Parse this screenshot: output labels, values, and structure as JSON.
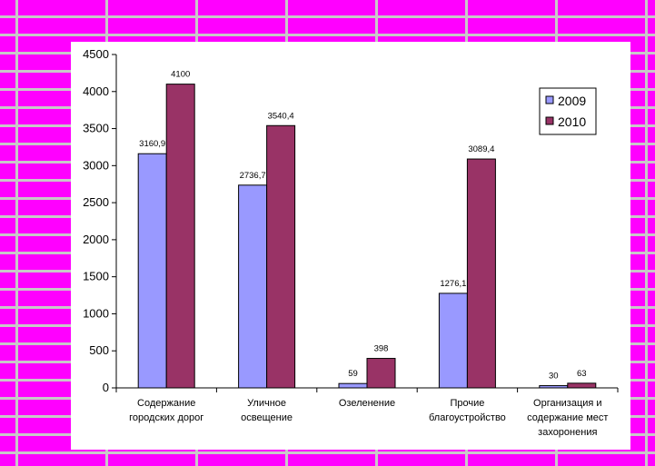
{
  "chart_data": {
    "type": "bar",
    "categories": [
      [
        "Содержание",
        "городских дорог"
      ],
      [
        "Уличное",
        "освещение"
      ],
      [
        "Озеленение"
      ],
      [
        "Прочие",
        "благоустройство"
      ],
      [
        "Организация и",
        "содержание мест",
        "захоронения"
      ]
    ],
    "series": [
      {
        "name": "2009",
        "values": [
          3160.9,
          2736.7,
          59,
          1276.1,
          30
        ],
        "labels": [
          "3160,9",
          "2736,7",
          "59",
          "1276,1",
          "30"
        ],
        "color": "#9999ff"
      },
      {
        "name": "2010",
        "values": [
          4100,
          3540.4,
          398,
          3089.4,
          63
        ],
        "labels": [
          "4100",
          "3540,4",
          "398",
          "3089,4",
          "63"
        ],
        "color": "#993366"
      }
    ],
    "ylim": [
      0,
      4500
    ],
    "yticks": [
      0,
      500,
      1000,
      1500,
      2000,
      2500,
      3000,
      3500,
      4000,
      4500
    ],
    "grid": false,
    "legend": "top-right"
  }
}
